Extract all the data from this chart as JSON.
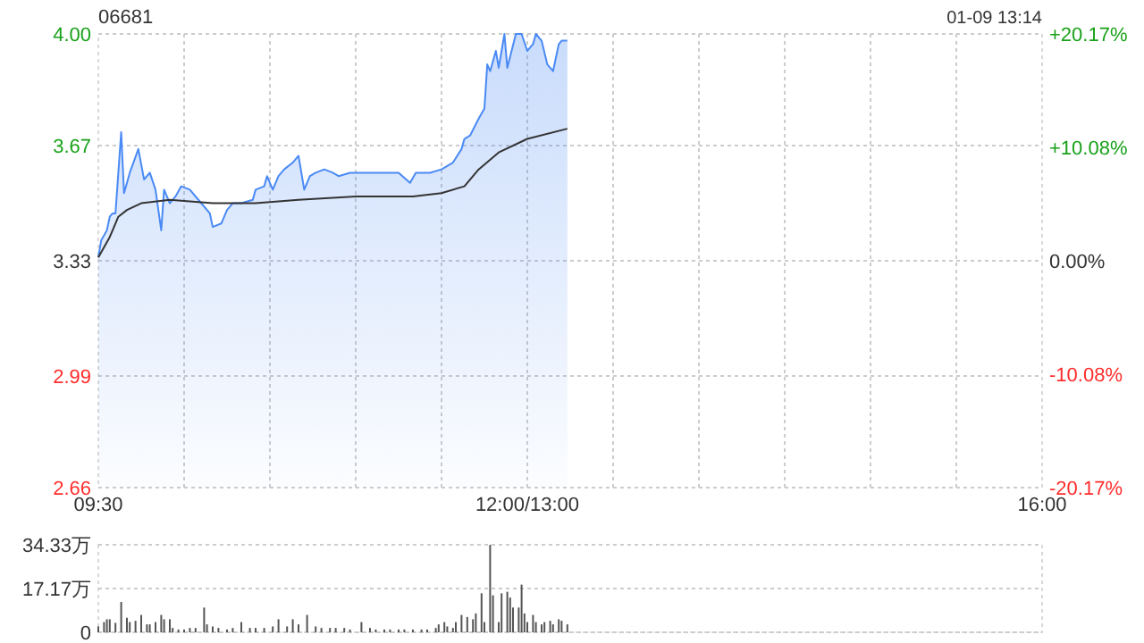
{
  "chart_data": [
    {
      "type": "line",
      "title": "06681",
      "annotations": [
        "01-09 13:14"
      ],
      "categories": [
        "09:30",
        null,
        null,
        null,
        null,
        null,
        null,
        null,
        null,
        null,
        null,
        null,
        null,
        null,
        null,
        null,
        null,
        null,
        null,
        null,
        null,
        null,
        null,
        null,
        null,
        null,
        null,
        null,
        null,
        null,
        null,
        null,
        null,
        null,
        null,
        null,
        null,
        null,
        null,
        null,
        null,
        null,
        null,
        null,
        null,
        null,
        null,
        null,
        null,
        null,
        null,
        null,
        null,
        null,
        null,
        null,
        null,
        null,
        null,
        null,
        null,
        null,
        null,
        null,
        null,
        null,
        null,
        null,
        null,
        null,
        null,
        null,
        null,
        null,
        null,
        null,
        null,
        null,
        null,
        null,
        null,
        null,
        null,
        null,
        null,
        null,
        null,
        null,
        null,
        null,
        null,
        null,
        null,
        null,
        null,
        null,
        null,
        null,
        null,
        null,
        null,
        null,
        null,
        null,
        null,
        null,
        null,
        null,
        null,
        null,
        null,
        null,
        null,
        null,
        null,
        null,
        null,
        null,
        null,
        null,
        null,
        null,
        null,
        null,
        null,
        null,
        null,
        null,
        null,
        null,
        null,
        null,
        null,
        null,
        null,
        null,
        null,
        null,
        null,
        null,
        null,
        null,
        null,
        null,
        null,
        null,
        null,
        null,
        null,
        null,
        "12:00/13:00",
        null,
        null,
        null,
        null,
        null,
        null,
        null,
        null,
        null,
        null,
        null,
        null,
        null,
        null,
        null,
        null,
        null,
        null,
        null,
        null,
        null,
        null,
        null,
        null,
        null,
        null,
        null,
        null,
        null,
        null,
        null,
        null,
        null,
        null,
        null,
        null,
        null,
        null,
        null,
        null,
        null,
        null,
        null,
        null,
        null,
        null,
        null,
        null,
        null,
        null,
        null,
        null,
        null,
        null,
        null,
        null,
        null,
        null,
        null,
        null,
        null,
        null,
        null,
        null,
        null,
        null,
        null,
        null,
        null,
        null,
        null,
        null,
        null,
        null,
        null,
        null,
        null,
        null,
        null,
        null,
        null,
        null,
        null,
        null,
        null,
        null,
        null,
        null,
        null,
        null,
        null,
        null,
        null,
        null,
        null,
        null,
        null,
        null,
        null,
        null,
        null,
        null,
        null,
        null,
        null,
        null,
        null,
        null,
        null,
        null,
        null,
        null,
        null,
        null,
        null,
        null,
        null,
        null,
        null,
        null,
        null,
        null,
        null,
        null,
        null,
        null,
        null,
        null,
        null,
        null,
        null,
        null,
        null,
        null,
        null,
        null,
        null,
        null,
        null,
        null,
        null,
        null,
        null,
        null,
        null,
        null,
        null,
        null,
        null,
        null,
        null,
        null,
        null,
        null,
        null,
        null,
        null,
        null,
        null,
        null,
        null,
        null,
        null,
        null,
        null,
        null,
        null,
        null,
        null,
        null,
        null,
        null,
        null,
        null,
        null,
        null,
        null,
        null,
        null,
        "16:00"
      ],
      "ylim": [
        2.66,
        4.0
      ],
      "yticks": [
        2.66,
        2.99,
        3.33,
        3.67,
        {
          "value": 4,
          "label": "4.00"
        }
      ],
      "y2lim": [
        -20.17,
        20.17
      ],
      "y2ticks": [
        {
          "value": -20.17,
          "label": "-20.17%"
        },
        {
          "value": -10.08,
          "label": "-10.08%"
        },
        {
          "value": 0,
          "label": "0.00%"
        },
        {
          "value": 10.08,
          "label": "+10.08%"
        },
        {
          "value": 20.17,
          "label": "+20.17%"
        }
      ],
      "grid": true,
      "series": [
        {
          "type": "area",
          "color": "#4a8af4",
          "values": [
            3.34,
            3.39,
            null,
            3.42,
            3.46,
            3.47,
            3.47,
            null,
            3.71,
            3.53,
            null,
            3.59,
            null,
            null,
            3.66,
            null,
            3.57,
            null,
            3.59,
            null,
            3.54,
            null,
            3.42,
            3.54,
            null,
            3.5,
            null,
            3.52,
            null,
            3.55,
            null,
            null,
            3.54,
            null,
            null,
            3.51,
            null,
            null,
            null,
            3.47,
            3.43,
            null,
            null,
            3.44,
            null,
            3.48,
            null,
            3.5,
            null,
            null,
            3.5,
            null,
            null,
            null,
            3.51,
            3.54,
            null,
            null,
            3.55,
            3.58,
            null,
            3.54,
            null,
            3.58,
            null,
            3.6,
            null,
            null,
            3.62,
            null,
            3.64,
            null,
            3.54,
            null,
            3.58,
            null,
            3.59,
            null,
            null,
            3.6,
            null,
            null,
            3.59,
            null,
            3.58,
            null,
            null,
            null,
            3.59,
            null,
            null,
            null,
            null,
            3.59,
            null,
            null,
            null,
            null,
            3.59,
            null,
            null,
            null,
            null,
            null,
            null,
            3.59,
            null,
            null,
            null,
            3.56,
            null,
            3.59,
            null,
            null,
            null,
            null,
            3.59,
            null,
            null,
            null,
            3.6,
            null,
            null,
            null,
            3.62,
            null,
            null,
            3.66,
            3.69,
            null,
            3.7,
            null,
            null,
            3.75,
            null,
            3.78,
            3.91,
            3.89,
            null,
            3.95,
            3.9,
            null,
            4.0,
            3.9,
            null,
            null,
            4.0,
            null,
            4.0,
            null,
            3.95,
            null,
            3.97,
            4.0,
            null,
            3.98,
            null,
            3.91,
            null,
            3.89,
            3.93,
            3.97,
            3.98,
            null,
            3.98,
            null,
            null,
            null,
            null,
            null,
            null,
            null,
            null,
            null,
            null,
            null,
            null,
            null,
            null,
            null,
            null,
            null,
            null,
            null,
            null,
            null,
            null,
            null,
            null,
            null,
            null,
            null,
            null,
            null,
            null,
            null,
            null,
            null,
            null,
            null,
            null,
            null,
            null,
            null,
            null,
            null,
            null,
            null,
            null,
            null,
            null,
            null,
            null,
            null,
            null,
            null,
            null,
            null,
            null,
            null,
            null,
            null,
            null,
            null,
            null,
            null,
            null,
            null,
            null,
            null,
            null,
            null,
            null,
            null,
            null,
            null,
            null,
            null,
            null,
            null,
            null,
            null,
            null,
            null,
            null,
            null,
            null,
            null,
            null,
            null,
            null,
            null,
            null,
            null,
            null,
            null,
            null,
            null,
            null,
            null,
            null,
            null,
            null,
            null,
            null,
            null,
            null,
            null,
            null,
            null,
            null,
            null,
            null,
            null,
            null,
            null,
            null,
            null,
            null,
            null,
            null,
            null,
            null,
            null,
            null,
            null,
            null,
            null,
            null,
            null,
            null,
            null,
            null,
            null,
            null,
            null,
            null,
            null,
            null,
            null,
            null,
            null,
            null,
            null,
            null,
            null,
            null,
            null,
            null,
            null,
            null,
            null,
            null,
            null,
            null,
            null,
            null,
            null,
            null,
            null,
            null,
            null,
            null,
            null,
            null,
            null,
            null,
            null,
            null,
            null,
            null
          ]
        },
        {
          "type": "line",
          "color": "#333333",
          "values": [
            3.34,
            null,
            null,
            null,
            3.4,
            null,
            null,
            3.46,
            null,
            null,
            3.48,
            null,
            null,
            null,
            null,
            3.5,
            null,
            null,
            null,
            null,
            null,
            null,
            null,
            null,
            null,
            3.51,
            null,
            null,
            null,
            null,
            null,
            null,
            null,
            null,
            null,
            null,
            null,
            null,
            null,
            null,
            3.5,
            null,
            null,
            null,
            null,
            null,
            null,
            null,
            null,
            null,
            null,
            null,
            null,
            null,
            null,
            3.5,
            null,
            null,
            null,
            null,
            null,
            null,
            null,
            null,
            null,
            null,
            null,
            null,
            null,
            null,
            3.51,
            null,
            null,
            null,
            null,
            null,
            null,
            null,
            null,
            null,
            null,
            null,
            null,
            null,
            null,
            null,
            null,
            null,
            null,
            null,
            3.52,
            null,
            null,
            null,
            null,
            null,
            null,
            null,
            null,
            null,
            null,
            null,
            null,
            null,
            null,
            null,
            null,
            null,
            null,
            null,
            3.52,
            null,
            null,
            null,
            null,
            null,
            null,
            null,
            null,
            null,
            3.53,
            null,
            null,
            null,
            null,
            null,
            null,
            null,
            3.55,
            null,
            null,
            null,
            null,
            3.6,
            null,
            null,
            null,
            null,
            null,
            null,
            3.65,
            null,
            null,
            null,
            null,
            null,
            null,
            null,
            null,
            null,
            3.69,
            null,
            null,
            null,
            null,
            null,
            null,
            null,
            null,
            null,
            null,
            null,
            null,
            null,
            3.72,
            null,
            null,
            null,
            null,
            null,
            null,
            null,
            null,
            null,
            null,
            null,
            null,
            null,
            null,
            null,
            null,
            null,
            null,
            null,
            null,
            null,
            null,
            null,
            null,
            null,
            null,
            null,
            null,
            null,
            null,
            null,
            null,
            null,
            null,
            null,
            null,
            null,
            null,
            null,
            null,
            null,
            null,
            null,
            null,
            null,
            null,
            null,
            null,
            null,
            null,
            null,
            null,
            null,
            null,
            null,
            null,
            null,
            null,
            null,
            null,
            null,
            null,
            null,
            null,
            null,
            null,
            null,
            null,
            null,
            null,
            null,
            null,
            null,
            null,
            null,
            null,
            null,
            null,
            null,
            null,
            null,
            null,
            null,
            null,
            null,
            null,
            null,
            null,
            null,
            null,
            null,
            null,
            null,
            null,
            null,
            null,
            null,
            null,
            null,
            null,
            null,
            null,
            null,
            null,
            null,
            null,
            null,
            null,
            null,
            null,
            null,
            null,
            null,
            null,
            null,
            null,
            null,
            null,
            null,
            null,
            null,
            null,
            null,
            null,
            null,
            null,
            null,
            null,
            null,
            null,
            null,
            null,
            null,
            null,
            null,
            null,
            null,
            null,
            null,
            null,
            null,
            null,
            null,
            null,
            null,
            null,
            null,
            null,
            null,
            null,
            null,
            null,
            null,
            null,
            null,
            null,
            null,
            null,
            null,
            null,
            null,
            null,
            null,
            null,
            null,
            null
          ]
        }
      ]
    },
    {
      "type": "bar",
      "ylim": [
        0,
        34.33
      ],
      "yticks": [
        0,
        {
          "value": 17.17,
          "label": "17.17万"
        },
        {
          "value": 34.33,
          "label": "34.33万"
        }
      ],
      "grid": "y",
      "tick_labels": "y",
      "series": [
        {
          "color": "#555555",
          "values": [
            2.3,
            null,
            4.0,
            5.1,
            5.1,
            null,
            3.7,
            null,
            11.9,
            null,
            5.7,
            4.0,
            null,
            4.5,
            null,
            6.8,
            null,
            3.1,
            3.1,
            null,
            4.0,
            null,
            6.8,
            5.1,
            null,
            5.1,
            1.7,
            null,
            1.1,
            null,
            1.1,
            null,
            1.7,
            null,
            1.7,
            null,
            null,
            9.7,
            3.1,
            null,
            2.3,
            null,
            1.7,
            null,
            null,
            1.1,
            null,
            1.7,
            null,
            null,
            4.0,
            null,
            null,
            1.7,
            null,
            1.7,
            null,
            null,
            1.7,
            null,
            null,
            2.3,
            null,
            5.1,
            null,
            null,
            2.3,
            null,
            5.1,
            null,
            3.1,
            null,
            null,
            6.8,
            null,
            null,
            2.3,
            null,
            1.7,
            null,
            null,
            1.7,
            null,
            1.7,
            null,
            null,
            1.7,
            null,
            1.1,
            null,
            null,
            null,
            4.0,
            null,
            null,
            1.7,
            null,
            1.1,
            null,
            null,
            1.1,
            null,
            1.1,
            null,
            null,
            1.1,
            null,
            1.1,
            null,
            null,
            1.1,
            null,
            null,
            1.1,
            null,
            1.1,
            null,
            null,
            1.7,
            3.1,
            null,
            4.0,
            2.3,
            null,
            1.7,
            4.0,
            null,
            6.8,
            null,
            6.0,
            null,
            5.1,
            7.4,
            null,
            15.3,
            4.0,
            null,
            34.3,
            14.5,
            null,
            4.0,
            15.3,
            null,
            15.9,
            13.6,
            9.7,
            null,
            9.7,
            18.7,
            7.4,
            4.0,
            null,
            6.8,
            4.0,
            null,
            3.1,
            4.0,
            null,
            4.5,
            3.1,
            null,
            5.1,
            4.5,
            null,
            3.1,
            null,
            null,
            null,
            null,
            null,
            null,
            null,
            null,
            null,
            null,
            null,
            null,
            null,
            null,
            null,
            null,
            null,
            null,
            null,
            null,
            null,
            null,
            null,
            null,
            null,
            null,
            null,
            null,
            null,
            null,
            null,
            null,
            null,
            null,
            null,
            null,
            null,
            null,
            null,
            null,
            null,
            null,
            null,
            null,
            null,
            null,
            null,
            null,
            null,
            null,
            null,
            null,
            null,
            null,
            null,
            null,
            null,
            null,
            null,
            null,
            null,
            null,
            null,
            null,
            null,
            null,
            null,
            null,
            null,
            null,
            null,
            null,
            null,
            null,
            null,
            null,
            null,
            null,
            null,
            null,
            null,
            null,
            null,
            null,
            null,
            null,
            null,
            null,
            null,
            null,
            null,
            null,
            null,
            null,
            null,
            null,
            null,
            null,
            null,
            null,
            null,
            null,
            null,
            null,
            null,
            null,
            null,
            null,
            null,
            null,
            null,
            null,
            null,
            null,
            null,
            null,
            null,
            null,
            null,
            null,
            null,
            null,
            null,
            null,
            null,
            null,
            null,
            null,
            null,
            null,
            null,
            null,
            null,
            null,
            null,
            null,
            null,
            null,
            null,
            null,
            null,
            null,
            null,
            null,
            null,
            null,
            null,
            null,
            null,
            null,
            null,
            null,
            null,
            null,
            null,
            null,
            null,
            null,
            null,
            null,
            null,
            null,
            null,
            null,
            null,
            null
          ]
        }
      ]
    }
  ]
}
